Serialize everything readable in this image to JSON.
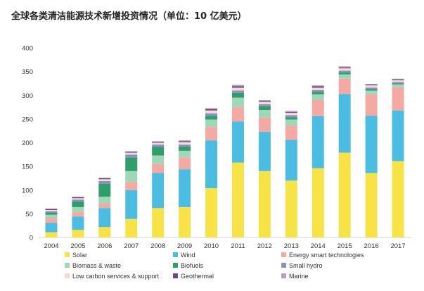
{
  "chart_data": {
    "type": "bar",
    "stacked": true,
    "title": "全球各类清洁能源技术新增投资情况（单位：10 亿美元）",
    "xlabel": "",
    "ylabel": "",
    "ylim": [
      0,
      400
    ],
    "yticks": [
      0,
      50,
      100,
      150,
      200,
      250,
      300,
      350,
      400
    ],
    "grid": false,
    "legend_position": "bottom",
    "categories": [
      "2004",
      "2005",
      "2006",
      "2007",
      "2008",
      "2009",
      "2010",
      "2011",
      "2012",
      "2013",
      "2014",
      "2015",
      "2016",
      "2017"
    ],
    "series": [
      {
        "name": "Solar",
        "color": "#f7e346",
        "values": [
          11,
          16,
          22,
          39,
          62,
          64,
          104,
          158,
          140,
          120,
          146,
          179,
          136,
          161
        ]
      },
      {
        "name": "Wind",
        "color": "#4bbde3",
        "values": [
          20,
          28,
          40,
          61,
          74,
          80,
          101,
          87,
          83,
          86,
          110,
          124,
          121,
          107
        ]
      },
      {
        "name": "Energy smart technologies",
        "color": "#f4a9a3",
        "values": [
          10,
          10,
          10,
          17,
          19,
          25,
          28,
          30,
          30,
          30,
          34,
          32,
          45,
          49
        ]
      },
      {
        "name": "Biomass & waste",
        "color": "#9fd8b7",
        "values": [
          7,
          10,
          14,
          23,
          18,
          14,
          16,
          20,
          16,
          13,
          12,
          9,
          8,
          6
        ]
      },
      {
        "name": "Biofuels",
        "color": "#2e9e6a",
        "values": [
          4,
          12,
          27,
          29,
          18,
          9,
          8,
          10,
          8,
          5,
          5,
          4,
          3,
          2
        ]
      },
      {
        "name": "Small hydro",
        "color": "#8c8fc4",
        "values": [
          3,
          4,
          6,
          6,
          5,
          4,
          5,
          5,
          4,
          4,
          4,
          4,
          3,
          3
        ]
      },
      {
        "name": "Low carbon services & support",
        "color": "#f3dbd0",
        "values": [
          3,
          3,
          4,
          4,
          4,
          5,
          6,
          6,
          5,
          5,
          5,
          5,
          5,
          4
        ]
      },
      {
        "name": "Geothermal",
        "color": "#6a4a7c",
        "values": [
          2,
          2,
          2,
          2,
          2,
          2,
          3,
          3,
          2,
          2,
          3,
          2,
          2,
          2
        ]
      },
      {
        "name": "Marine",
        "color": "#b89cc8",
        "values": [
          1,
          1,
          1,
          1,
          1,
          2,
          2,
          3,
          2,
          2,
          2,
          2,
          1,
          1
        ]
      }
    ]
  }
}
